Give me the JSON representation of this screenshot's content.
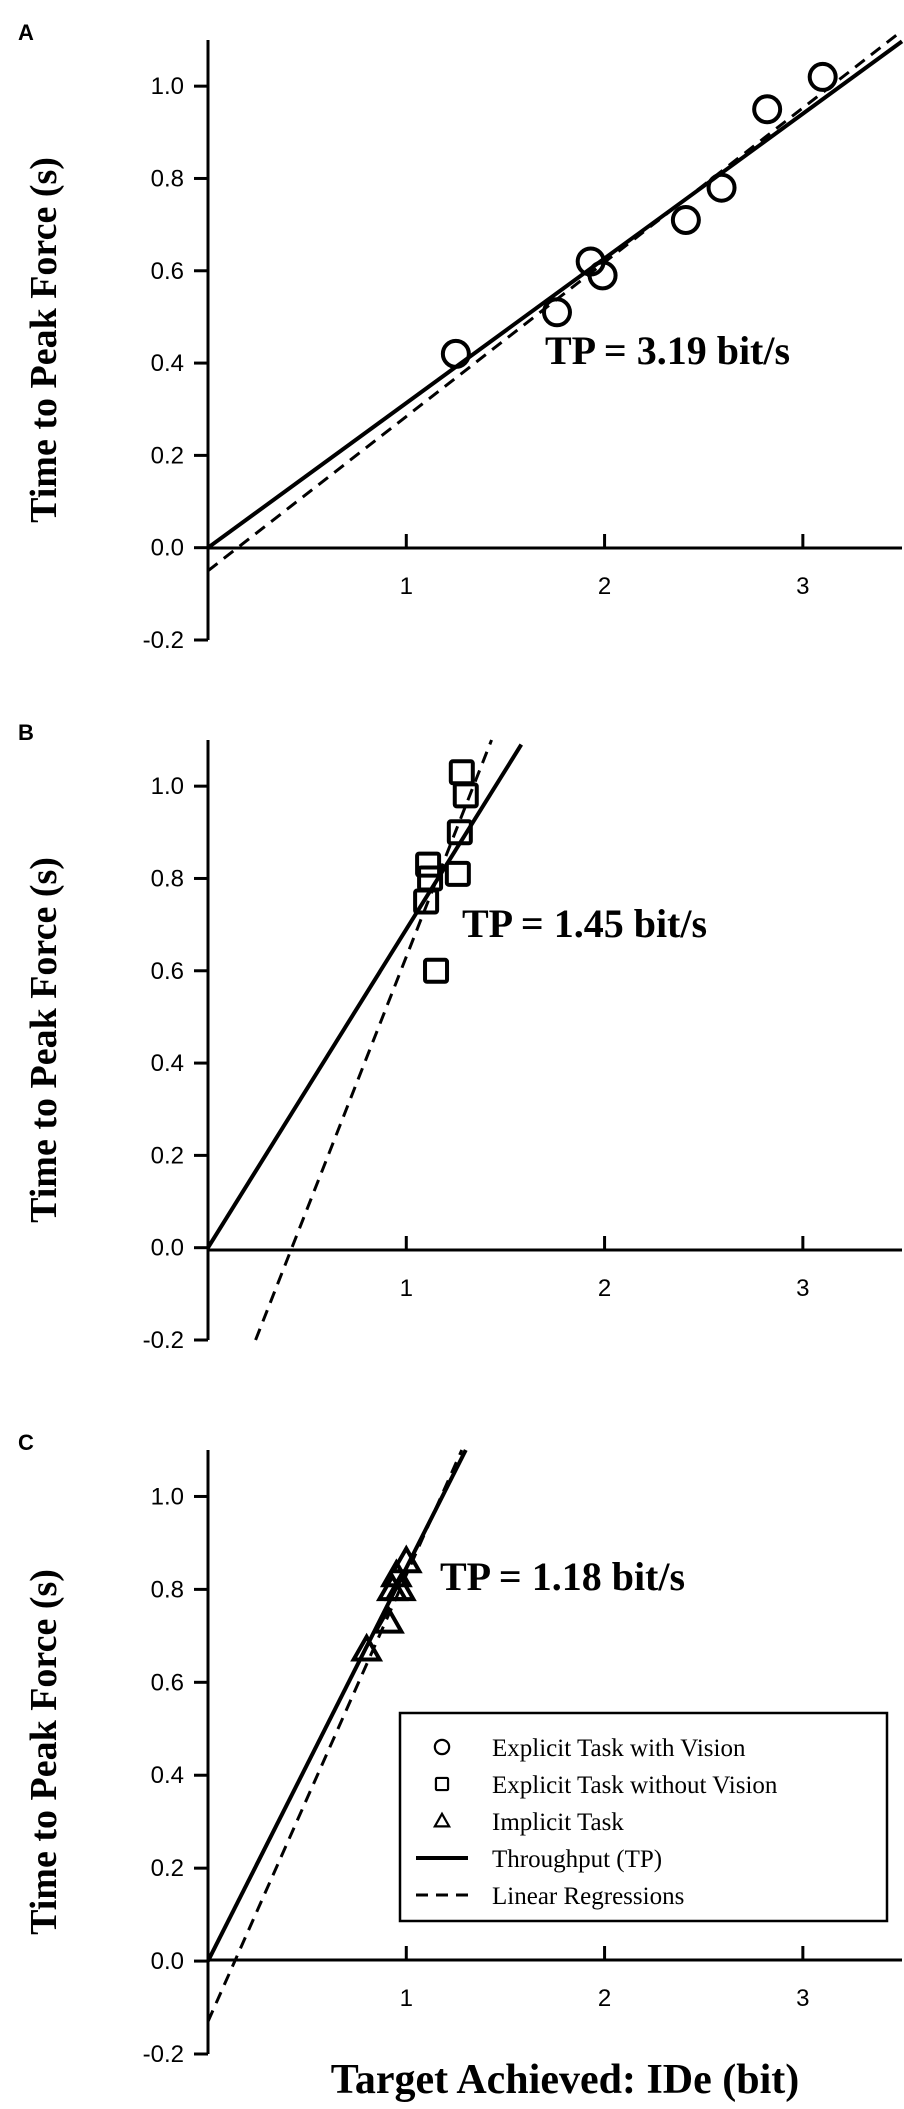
{
  "chart_data": [
    {
      "panel": "A",
      "type": "scatter",
      "xlabel": "",
      "ylabel": "Time to Peak Force (s)",
      "xlim": [
        0,
        3.5
      ],
      "ylim": [
        -0.2,
        1.1
      ],
      "xticks": [
        "1",
        "2",
        "3"
      ],
      "yticks": [
        "-0.2",
        "0.0",
        "0.2",
        "0.4",
        "0.6",
        "0.8",
        "1.0"
      ],
      "annotation": "TP = 3.19 bit/s",
      "points": {
        "marker": "circle",
        "x": [
          1.25,
          1.76,
          1.93,
          1.99,
          2.41,
          2.59,
          2.82,
          3.1
        ],
        "y": [
          0.42,
          0.51,
          0.62,
          0.59,
          0.71,
          0.78,
          0.95,
          1.02
        ]
      },
      "lines": [
        {
          "style": "solid",
          "x": [
            0,
            3.5
          ],
          "y": [
            0,
            1.097
          ]
        },
        {
          "style": "dashed",
          "x": [
            0,
            3.5
          ],
          "y": [
            -0.05,
            1.12
          ]
        }
      ]
    },
    {
      "panel": "B",
      "type": "scatter",
      "xlabel": "",
      "ylabel": "Time to Peak Force (s)",
      "xlim": [
        0,
        3.5
      ],
      "ylim": [
        -0.2,
        1.1
      ],
      "xticks": [
        "1",
        "2",
        "3"
      ],
      "yticks": [
        "-0.2",
        "0.0",
        "0.2",
        "0.4",
        "0.6",
        "0.8",
        "1.0"
      ],
      "annotation": "TP = 1.45 bit/s",
      "points": {
        "marker": "square",
        "x": [
          1.11,
          1.12,
          1.1,
          1.15,
          1.26,
          1.27,
          1.3,
          1.28
        ],
        "y": [
          0.83,
          0.8,
          0.75,
          0.6,
          0.81,
          0.9,
          0.98,
          1.03
        ]
      },
      "lines": [
        {
          "style": "solid",
          "x": [
            0,
            1.58
          ],
          "y": [
            0,
            1.09
          ]
        },
        {
          "style": "dashed",
          "x": [
            0.24,
            1.43
          ],
          "y": [
            -0.2,
            1.1
          ]
        }
      ]
    },
    {
      "panel": "C",
      "type": "scatter",
      "xlabel": "Target Achieved: IDe (bit)",
      "ylabel": "Time to Peak Force (s)",
      "xlim": [
        0,
        3.5
      ],
      "ylim": [
        -0.2,
        1.1
      ],
      "xticks": [
        "1",
        "2",
        "3"
      ],
      "yticks": [
        "-0.2",
        "0.0",
        "0.2",
        "0.4",
        "0.6",
        "0.8",
        "1.0"
      ],
      "annotation": "TP = 1.18 bit/s",
      "points": {
        "marker": "triangle",
        "x": [
          0.8,
          0.91,
          0.93,
          0.95,
          0.97,
          1.0
        ],
        "y": [
          0.67,
          0.73,
          0.8,
          0.83,
          0.8,
          0.86
        ]
      },
      "lines": [
        {
          "style": "solid",
          "x": [
            0,
            1.3
          ],
          "y": [
            0,
            1.1
          ]
        },
        {
          "style": "dashed",
          "x": [
            0,
            1.28
          ],
          "y": [
            -0.13,
            1.1
          ]
        }
      ],
      "legend": {
        "placement": "bottom-right",
        "entries": [
          {
            "marker": "circle",
            "label": "Explicit Task with Vision"
          },
          {
            "marker": "square",
            "label": "Explicit Task without Vision"
          },
          {
            "marker": "triangle",
            "label": "Implicit Task"
          },
          {
            "marker": "solid-line",
            "label": "Throughput (TP)"
          },
          {
            "marker": "dashed-line",
            "label": "Linear Regressions"
          }
        ]
      }
    }
  ]
}
